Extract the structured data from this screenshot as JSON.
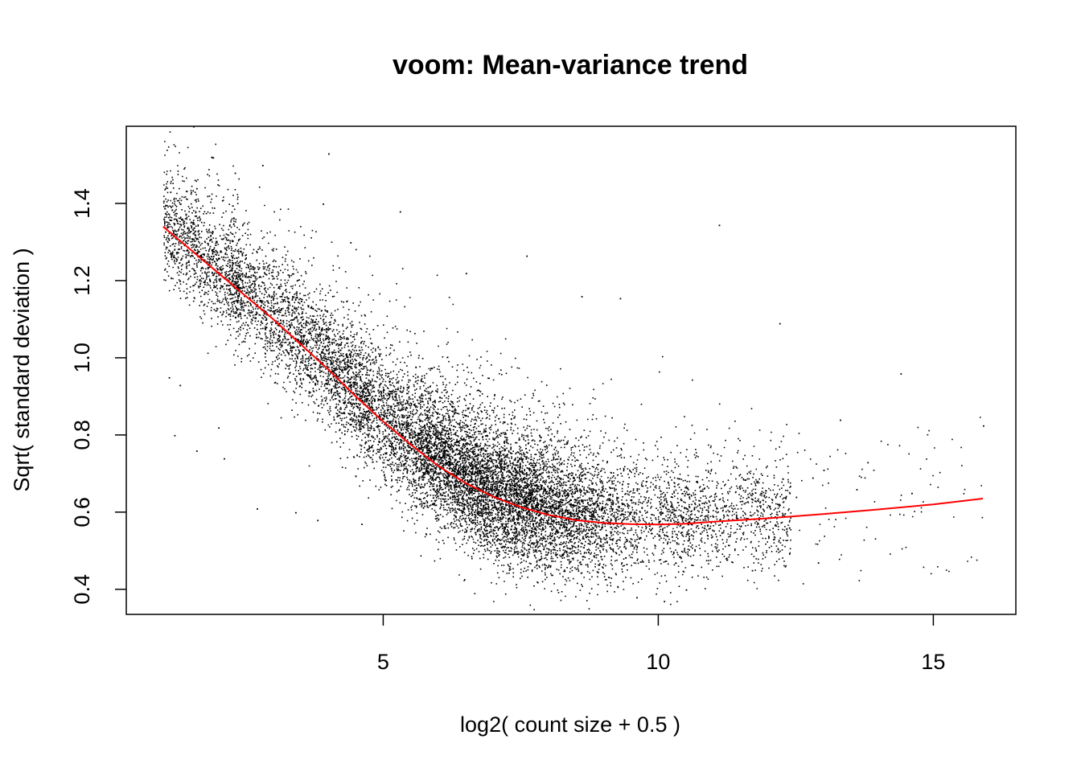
{
  "chart_data": {
    "type": "scatter",
    "title": "voom: Mean-variance trend",
    "xlabel": "log2( count size + 0.5 )",
    "ylabel": "Sqrt( standard deviation )",
    "xlim": [
      0.33,
      16.5
    ],
    "ylim": [
      0.335,
      1.6
    ],
    "x_ticks": [
      5,
      10,
      15
    ],
    "y_ticks": [
      0.4,
      0.6,
      0.8,
      1.0,
      1.2,
      1.4
    ],
    "x_tick_labels": [
      "5",
      "10",
      "15"
    ],
    "y_tick_labels": [
      "0.4",
      "0.6",
      "0.8",
      "1.0",
      "1.2",
      "1.4"
    ],
    "grid": false,
    "legend": "none",
    "point_color": "#000000",
    "trend_color": "#ff0000",
    "series": [
      {
        "role": "trend",
        "color": "#ff0000",
        "x": [
          1.0,
          1.5,
          2.0,
          2.5,
          3.0,
          3.5,
          4.0,
          4.5,
          5.0,
          5.5,
          6.0,
          6.5,
          7.0,
          7.5,
          8.0,
          8.5,
          9.0,
          9.5,
          10.0,
          10.5,
          11.0,
          12.0,
          13.0,
          14.0,
          15.0,
          15.9
        ],
        "y": [
          1.34,
          1.28,
          1.22,
          1.16,
          1.1,
          1.035,
          0.97,
          0.9,
          0.835,
          0.775,
          0.72,
          0.675,
          0.64,
          0.613,
          0.593,
          0.579,
          0.572,
          0.569,
          0.568,
          0.57,
          0.575,
          0.584,
          0.595,
          0.607,
          0.62,
          0.635
        ]
      },
      {
        "role": "points",
        "color": "#000000",
        "x": [
          1.9,
          2.3,
          2.8,
          4.0,
          3.9,
          1.6,
          1.8,
          1.5,
          11.1,
          9.3,
          12.2,
          8.6,
          7.6,
          14.4,
          15.9,
          13.8,
          13.0,
          12.8,
          14.6,
          1.2,
          1.1,
          1.3,
          2.0,
          2.1,
          1.6,
          3.8,
          4.6,
          2.7,
          3.4,
          12.5,
          12.9,
          13.6,
          10.1,
          11.7,
          9.6,
          10.5,
          13.3,
          4.4,
          5.3,
          6.5
        ],
        "y": [
          1.52,
          1.48,
          1.5,
          1.53,
          1.4,
          1.44,
          1.42,
          1.43,
          1.345,
          1.155,
          1.09,
          1.16,
          1.265,
          0.96,
          0.825,
          0.73,
          0.71,
          0.69,
          0.65,
          0.8,
          0.95,
          0.93,
          0.82,
          0.74,
          0.76,
          0.58,
          0.57,
          0.61,
          0.6,
          0.64,
          0.47,
          0.66,
          0.37,
          0.45,
          0.38,
          0.4,
          0.84,
          1.3,
          1.38,
          1.22
        ]
      }
    ]
  }
}
